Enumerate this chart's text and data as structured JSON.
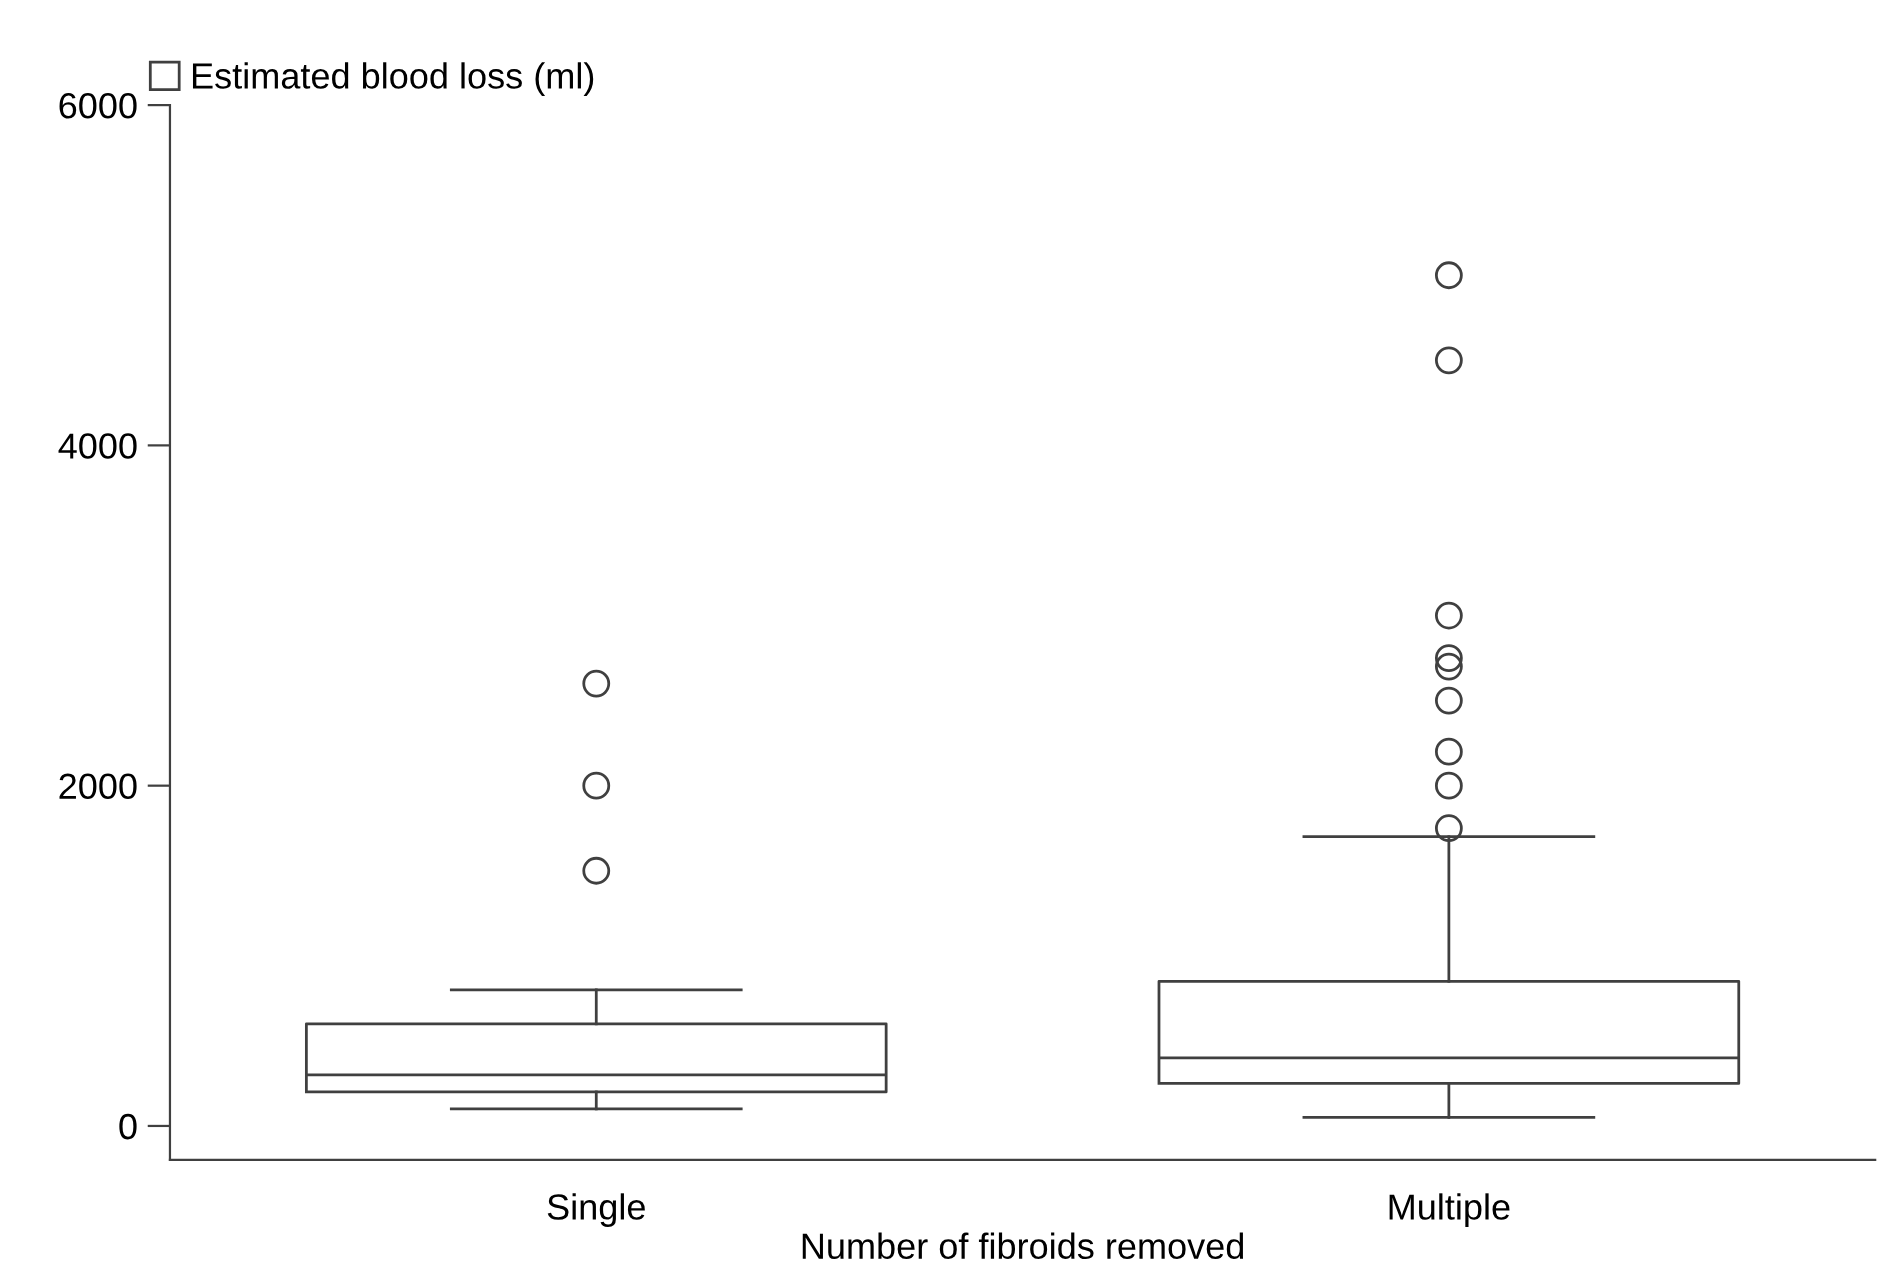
{
  "chart_data": {
    "type": "box",
    "xlabel": "Number of fibroids removed",
    "categories": [
      "Single",
      "Multiple"
    ],
    "series": [
      {
        "name": "Estimated blood loss (ml)",
        "color": "#404040",
        "boxes": [
          {
            "low": 100,
            "q1": 200,
            "median": 300,
            "q3": 600,
            "high": 800,
            "outliers": [
              1500,
              2000,
              2600
            ]
          },
          {
            "low": 50,
            "q1": 250,
            "median": 400,
            "q3": 850,
            "high": 1700,
            "outliers": [
              1750,
              2000,
              2200,
              2500,
              2700,
              2750,
              3000,
              4500,
              5000
            ]
          }
        ]
      }
    ],
    "ylim": [
      -200,
      6000
    ],
    "yticks": [
      0,
      2000,
      4000,
      6000
    ],
    "grid": false,
    "legend": "top left"
  }
}
